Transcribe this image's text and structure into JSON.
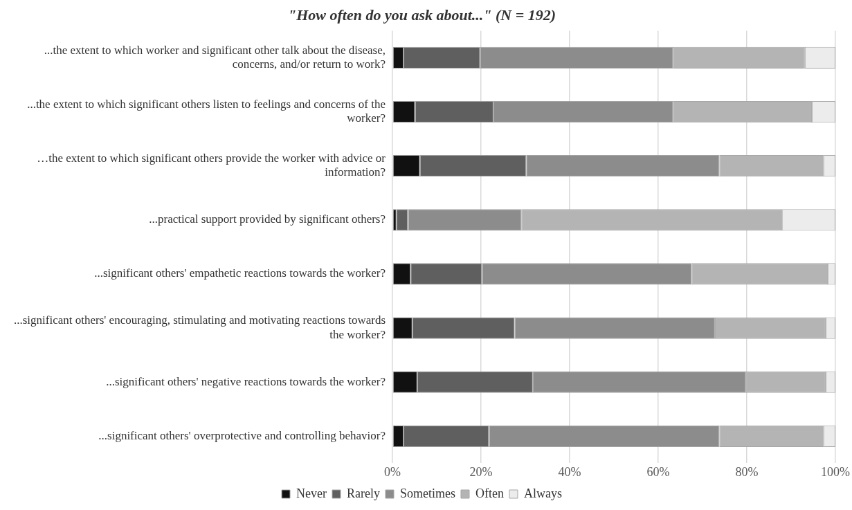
{
  "chart_data": {
    "type": "bar",
    "orientation": "horizontal",
    "stacked": true,
    "title": "\"How often do you ask about...\" (N = 192)",
    "categories": [
      "...the extent to which worker and significant other talk about the disease, concerns, and/or return to work?",
      "...the extent to which significant others listen to feelings and concerns of the worker?",
      "…the extent to which significant others provide the worker with advice or information?",
      "...practical support provided by significant others?",
      "...significant others' empathetic reactions towards the worker?",
      "...significant others' encouraging, stimulating and motivating reactions towards the worker?",
      "...significant others' negative reactions towards the worker?",
      "...significant others' overprotective and controlling behavior?"
    ],
    "series": [
      {
        "name": "Never",
        "color": "#111111",
        "values": [
          2.5,
          5.1,
          6.2,
          0.9,
          4.1,
          4.5,
          5.6,
          2.5
        ]
      },
      {
        "name": "Rarely",
        "color": "#5f5f5f",
        "values": [
          17.3,
          17.7,
          24.0,
          2.6,
          16.1,
          23.1,
          26.1,
          19.3
        ]
      },
      {
        "name": "Sometimes",
        "color": "#8c8c8c",
        "values": [
          43.6,
          40.6,
          43.6,
          25.6,
          47.4,
          45.2,
          48.0,
          52.0
        ]
      },
      {
        "name": "Often",
        "color": "#b4b4b4",
        "values": [
          29.7,
          31.3,
          23.6,
          58.9,
          30.7,
          25.0,
          18.1,
          23.6
        ]
      },
      {
        "name": "Always",
        "color": "#ececec",
        "values": [
          6.9,
          5.3,
          2.6,
          12.0,
          1.7,
          2.2,
          2.2,
          2.6
        ]
      }
    ],
    "xlim": [
      0,
      100
    ],
    "xticks": [
      {
        "value": 0,
        "label": "0%"
      },
      {
        "value": 20,
        "label": "20%"
      },
      {
        "value": 40,
        "label": "40%"
      },
      {
        "value": 60,
        "label": "60%"
      },
      {
        "value": 80,
        "label": "80%"
      },
      {
        "value": 100,
        "label": "100%"
      }
    ],
    "grid": "x",
    "legend": "bottom"
  }
}
